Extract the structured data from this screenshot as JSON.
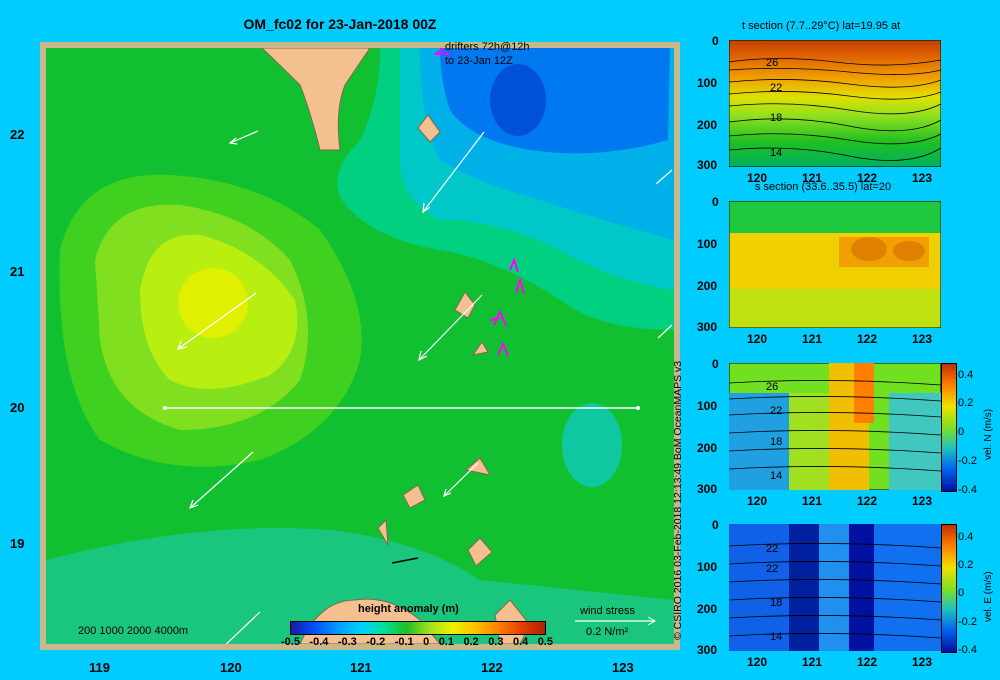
{
  "map": {
    "title": "OM_fc02 for 23-Jan-2018 00Z",
    "x_ticks": [
      "119",
      "120",
      "121",
      "122",
      "123"
    ],
    "y_ticks": [
      "22",
      "21",
      "20",
      "19"
    ],
    "drifters_line1": "drifters 72h@12h",
    "drifters_line2": "to 23-Jan 12Z",
    "depth_legend": "200  1000  2000  4000m",
    "wind_label": "wind stress",
    "wind_scale": "0.2 N/m²",
    "colorbar_title": "height anomaly  (m)",
    "colorbar_ticks": [
      "-0.5",
      "-0.4",
      "-0.3",
      "-0.2",
      "-0.1",
      "0",
      "0.1",
      "0.2",
      "0.3",
      "0.4",
      "0.5"
    ],
    "colors": {
      "background": "#00ccff",
      "land": "#f5c08f",
      "frame": "#c8b88a",
      "drifter": "#ff00ff"
    }
  },
  "credit": "© CSIRO 2016   03-Feb-2018 12:13:49 BoM OceanMAPS v3",
  "panels": [
    {
      "title": "t section (7.7..29°C) lat=19.95 at",
      "y_ticks": [
        "0",
        "100",
        "200",
        "300"
      ],
      "x_ticks": [
        "120",
        "121",
        "122",
        "123"
      ],
      "contours": [
        "26",
        "22",
        "18",
        "14"
      ],
      "colorbar": ""
    },
    {
      "title": "s section (33.6..35.5) lat=20",
      "y_ticks": [
        "0",
        "100",
        "200",
        "300"
      ],
      "x_ticks": [
        "120",
        "121",
        "122",
        "123"
      ],
      "contours": [],
      "colorbar": ""
    },
    {
      "title": "",
      "y_ticks": [
        "0",
        "100",
        "200",
        "300"
      ],
      "x_ticks": [
        "120",
        "121",
        "122",
        "123"
      ],
      "contours": [
        "26",
        "22",
        "18",
        "14"
      ],
      "colorbar": "vel. N (m/s)",
      "cb_ticks": [
        "0.4",
        "0.2",
        "0",
        "-0.2",
        "-0.4"
      ]
    },
    {
      "title": "",
      "y_ticks": [
        "0",
        "100",
        "200",
        "300"
      ],
      "x_ticks": [
        "120",
        "121",
        "122",
        "123"
      ],
      "contours": [
        "22",
        "22",
        "18",
        "14"
      ],
      "colorbar": "vel. E (m/s)",
      "cb_ticks": [
        "0.4",
        "0.2",
        "0",
        "-0.2",
        "-0.4"
      ]
    }
  ]
}
